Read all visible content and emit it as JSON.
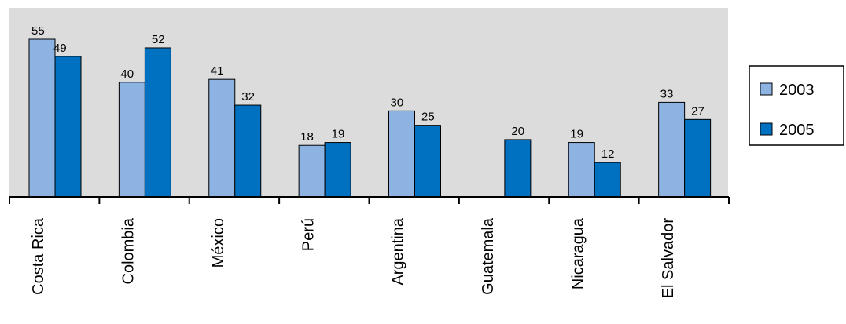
{
  "chart_data": {
    "type": "bar",
    "categories": [
      "Costa Rica",
      "Colombia",
      "México",
      "Perú",
      "Argentina",
      "Guatemala",
      "Nicaragua",
      "El Salvador"
    ],
    "series": [
      {
        "name": "2003",
        "values": [
          55,
          40,
          41,
          18,
          30,
          null,
          19,
          33
        ]
      },
      {
        "name": "2005",
        "values": [
          49,
          52,
          32,
          19,
          25,
          20,
          12,
          27
        ]
      }
    ],
    "ylim": [
      0,
      60
    ],
    "grid": false,
    "legend": "right",
    "colors": {
      "2003": "#8db3e2",
      "2005": "#0070c0",
      "plot_background": "#dcdcdc"
    }
  }
}
